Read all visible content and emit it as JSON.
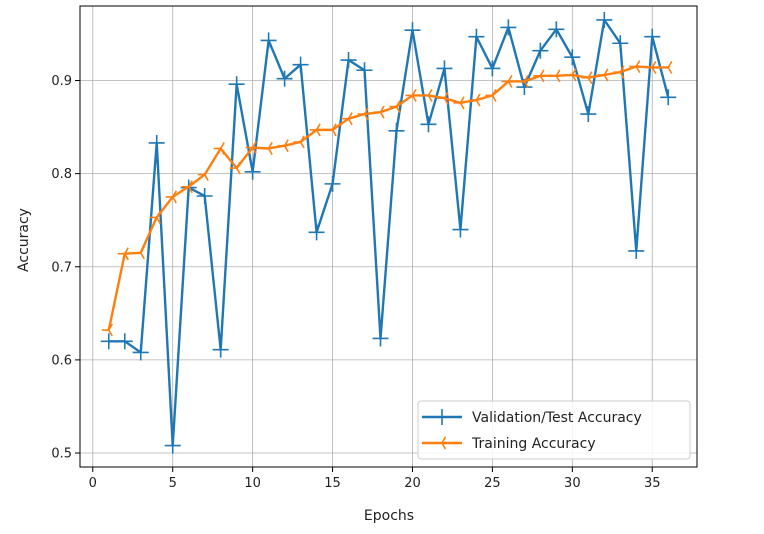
{
  "chart_data": {
    "type": "line",
    "title": "",
    "xlabel": "Epochs",
    "ylabel": "Accuracy",
    "xlim": [
      -0.8,
      37.8
    ],
    "ylim": [
      0.485,
      0.98
    ],
    "xticks": [
      0,
      5,
      10,
      15,
      20,
      25,
      30,
      35
    ],
    "yticks": [
      0.5,
      0.6,
      0.7,
      0.8,
      0.9
    ],
    "xtick_labels": [
      "0",
      "5",
      "10",
      "15",
      "20",
      "25",
      "30",
      "35"
    ],
    "ytick_labels": [
      "0.5",
      "0.6",
      "0.7",
      "0.8",
      "0.9"
    ],
    "grid": true,
    "legend_position": "lower right",
    "x": [
      1,
      2,
      3,
      4,
      5,
      6,
      7,
      8,
      9,
      10,
      11,
      12,
      13,
      14,
      15,
      16,
      17,
      18,
      19,
      20,
      21,
      22,
      23,
      24,
      25,
      26,
      27,
      28,
      29,
      30,
      31,
      32,
      33,
      34,
      35,
      36
    ],
    "series": [
      {
        "name": "Validation/Test Accuracy",
        "color": "#1f77b4",
        "marker": "plus",
        "values": [
          0.62,
          0.62,
          0.608,
          0.833,
          0.508,
          0.785,
          0.776,
          0.611,
          0.896,
          0.802,
          0.943,
          0.902,
          0.917,
          0.737,
          0.789,
          0.922,
          0.911,
          0.623,
          0.846,
          0.954,
          0.853,
          0.913,
          0.74,
          0.947,
          0.913,
          0.957,
          0.893,
          0.932,
          0.955,
          0.925,
          0.864,
          0.965,
          0.94,
          0.717,
          0.947,
          0.882
        ]
      },
      {
        "name": "Training Accuracy",
        "color": "#ff7f0e",
        "marker": "tri",
        "values": [
          0.632,
          0.714,
          0.715,
          0.753,
          0.775,
          0.786,
          0.799,
          0.827,
          0.806,
          0.828,
          0.827,
          0.83,
          0.834,
          0.847,
          0.847,
          0.859,
          0.864,
          0.866,
          0.872,
          0.884,
          0.884,
          0.881,
          0.876,
          0.879,
          0.884,
          0.899,
          0.899,
          0.905,
          0.905,
          0.906,
          0.903,
          0.906,
          0.909,
          0.915,
          0.914,
          0.914
        ]
      }
    ]
  }
}
